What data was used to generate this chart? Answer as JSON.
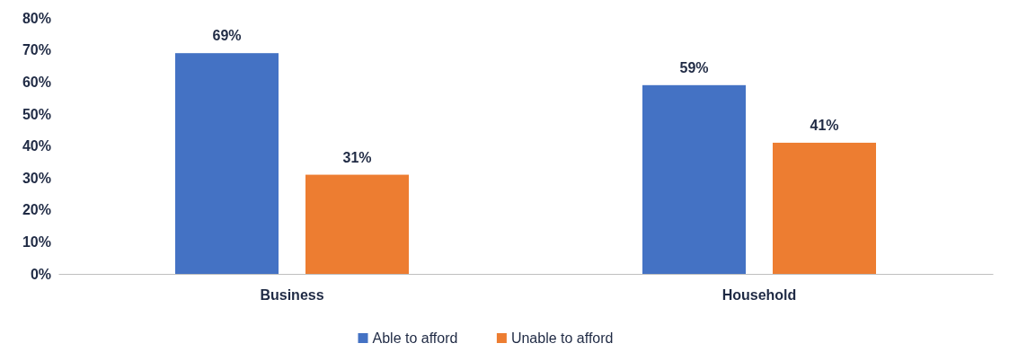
{
  "chart_data": {
    "type": "bar",
    "categories": [
      "Business",
      "Household"
    ],
    "series": [
      {
        "name": "Able to afford",
        "color": "#4472c4",
        "values": [
          69,
          59
        ],
        "value_labels": [
          "69%",
          "59%"
        ]
      },
      {
        "name": "Unable to afford",
        "color": "#ed7d31",
        "values": [
          31,
          41
        ],
        "value_labels": [
          "31%",
          "41%"
        ]
      }
    ],
    "ylim": [
      0,
      80
    ],
    "yticks": [
      {
        "value": 0,
        "label": "0%"
      },
      {
        "value": 10,
        "label": "10%"
      },
      {
        "value": 20,
        "label": "20%"
      },
      {
        "value": 30,
        "label": "30%"
      },
      {
        "value": 40,
        "label": "40%"
      },
      {
        "value": 50,
        "label": "50%"
      },
      {
        "value": 60,
        "label": "60%"
      },
      {
        "value": 70,
        "label": "70%"
      },
      {
        "value": 80,
        "label": "80%"
      }
    ],
    "grid": false,
    "legend": "bottom"
  }
}
